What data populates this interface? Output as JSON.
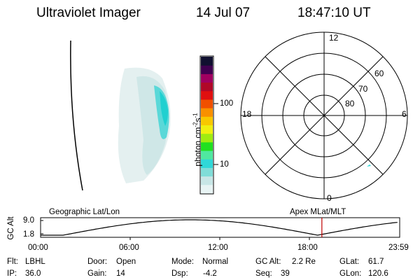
{
  "header": {
    "instrument": "Ultraviolet Imager",
    "date": "14 Jul 07",
    "time": "18:47:10 UT"
  },
  "colorbar": {
    "label": "photon cm-2s-1",
    "ticks": [
      "100",
      "10"
    ],
    "colors": [
      "#e8f4f4",
      "#c8e6e6",
      "#80ddd8",
      "#30d8d8",
      "#50e8a0",
      "#20e020",
      "#a0ec10",
      "#f0f010",
      "#f8c800",
      "#f89000",
      "#f05000",
      "#e01010",
      "#b00828",
      "#a00060",
      "#400050",
      "#101030"
    ]
  },
  "polar_plot": {
    "mlt_labels": [
      "12",
      "18",
      "6",
      "0"
    ],
    "lat_labels": [
      "60",
      "70",
      "80"
    ]
  },
  "timeline": {
    "top_left_label": "Geographic Lat/Lon",
    "top_right_label": "Apex MLat/MLT",
    "y_axis_label": "GC Alt",
    "y_ticks": [
      "9.0",
      "1.8"
    ],
    "x_ticks": [
      "00:00",
      "06:00",
      "12:00",
      "18:00",
      "23:59"
    ],
    "current_time_marker": "18:47:10",
    "marker_color": "#c00000"
  },
  "status": {
    "filter_label": "Flt:",
    "filter_value": "LBHL",
    "ip_label": "IP:",
    "ip_value": "36.0",
    "door_label": "Door:",
    "door_value": "Open",
    "gain_label": "Gain:",
    "gain_value": "14",
    "mode_label": "Mode:",
    "mode_value": "Normal",
    "dsp_label": "Dsp:",
    "dsp_value": "-4.2",
    "gcalt_label": "GC Alt:",
    "gcalt_value": "2.2 Re",
    "seq_label": "Seq:",
    "seq_value": "39",
    "glat_label": "GLat:",
    "glat_value": "61.7",
    "glon_label": "GLon:",
    "glon_value": "120.6"
  }
}
